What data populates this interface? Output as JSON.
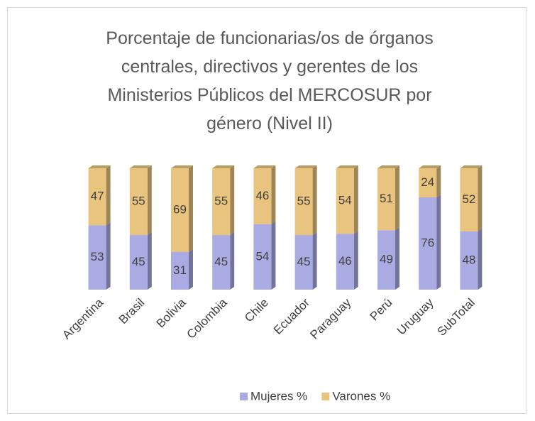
{
  "chart_data": {
    "type": "stacked_bar_3d",
    "title": "Porcentaje de funcionarias/os de órganos centrales, directivos y gerentes de los Ministerios Públicos del MERCOSUR por género (Nivel II)",
    "categories": [
      "Argentina",
      "Brasil",
      "Bolivia",
      "Colombia",
      "Chile",
      "Ecuador",
      "Paraguay",
      "Perú",
      "Uruguay",
      "SubTotal"
    ],
    "series": [
      {
        "name": "Mujeres %",
        "color": "#a9abe2",
        "values": [
          53,
          45,
          31,
          45,
          54,
          45,
          46,
          49,
          76,
          48
        ]
      },
      {
        "name": "Varones %",
        "color": "#e9c47e",
        "values": [
          47,
          55,
          69,
          55,
          46,
          55,
          54,
          51,
          24,
          52
        ]
      }
    ],
    "legend": "bottom"
  }
}
